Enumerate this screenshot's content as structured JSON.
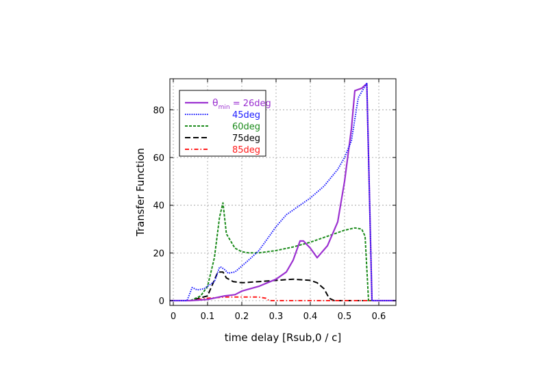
{
  "chart_data": {
    "type": "line",
    "xlabel": "time delay [Rsub,0 / c]",
    "ylabel": "Transfer Function",
    "xlim": [
      -0.01,
      0.65
    ],
    "ylim": [
      -2,
      93
    ],
    "xticks": [
      "0",
      "0.1",
      "0.2",
      "0.3",
      "0.4",
      "0.5",
      "0.6"
    ],
    "xtick_values": [
      0,
      0.1,
      0.2,
      0.3,
      0.4,
      0.5,
      0.6
    ],
    "yticks": [
      "0",
      "20",
      "40",
      "60",
      "80"
    ],
    "ytick_values": [
      0,
      20,
      40,
      60,
      80
    ],
    "grid": true,
    "legend_position": "top-left",
    "legend_theta_symbol": "θ",
    "legend_theta_sub": "min",
    "legend_theta_eq": " = ",
    "series": [
      {
        "name": "26deg",
        "color": "#9b30d0",
        "style": "solid",
        "x": [
          -0.01,
          0.05,
          0.1,
          0.15,
          0.18,
          0.2,
          0.25,
          0.3,
          0.33,
          0.35,
          0.37,
          0.38,
          0.4,
          0.42,
          0.45,
          0.48,
          0.5,
          0.52,
          0.53,
          0.55,
          0.565,
          0.58,
          0.65
        ],
        "y": [
          0,
          0,
          0.5,
          2,
          2.5,
          4,
          6,
          9,
          12,
          17,
          25,
          25,
          22,
          18,
          23,
          33,
          50,
          72,
          88,
          89,
          91,
          0,
          0
        ]
      },
      {
        "name": "45deg",
        "color": "#1a1aff",
        "style": "dotted",
        "x": [
          -0.01,
          0.04,
          0.055,
          0.07,
          0.09,
          0.12,
          0.135,
          0.14,
          0.15,
          0.16,
          0.18,
          0.2,
          0.22,
          0.25,
          0.28,
          0.3,
          0.33,
          0.36,
          0.4,
          0.44,
          0.48,
          0.5,
          0.52,
          0.54,
          0.56,
          0.565,
          0.58,
          0.65
        ],
        "y": [
          0,
          0,
          5.5,
          4.5,
          5,
          8,
          14,
          14,
          13,
          11.5,
          12,
          14.5,
          17,
          21,
          27,
          31,
          36,
          39,
          43,
          48,
          55,
          60,
          67,
          85,
          90,
          91,
          0,
          0
        ]
      },
      {
        "name": "60deg",
        "color": "#1a8a1a",
        "style": "dashed",
        "x": [
          -0.01,
          0.05,
          0.08,
          0.1,
          0.12,
          0.135,
          0.145,
          0.155,
          0.18,
          0.2,
          0.22,
          0.25,
          0.3,
          0.35,
          0.4,
          0.45,
          0.5,
          0.53,
          0.55,
          0.56,
          0.57,
          0.65
        ],
        "y": [
          0,
          0,
          2,
          6,
          18,
          35,
          41,
          28,
          22,
          20.5,
          20,
          20,
          21,
          22.5,
          24.5,
          27,
          29.5,
          30.5,
          30,
          27,
          0,
          0
        ]
      },
      {
        "name": "75deg",
        "color": "#000000",
        "style": "dashed-long",
        "x": [
          -0.01,
          0.05,
          0.1,
          0.13,
          0.145,
          0.155,
          0.175,
          0.2,
          0.25,
          0.3,
          0.35,
          0.4,
          0.42,
          0.44,
          0.455,
          0.47,
          0.65
        ],
        "y": [
          0,
          0,
          2,
          12,
          12,
          9.5,
          8,
          7.5,
          8,
          8.5,
          9,
          8.5,
          7.5,
          5,
          1,
          0,
          0
        ]
      },
      {
        "name": "85deg",
        "color": "#ff1a1a",
        "style": "dashdot",
        "x": [
          -0.01,
          0.05,
          0.1,
          0.15,
          0.2,
          0.25,
          0.27,
          0.28,
          0.65
        ],
        "y": [
          0,
          0,
          1,
          1.5,
          1.5,
          1.5,
          1,
          0,
          0
        ]
      }
    ]
  }
}
